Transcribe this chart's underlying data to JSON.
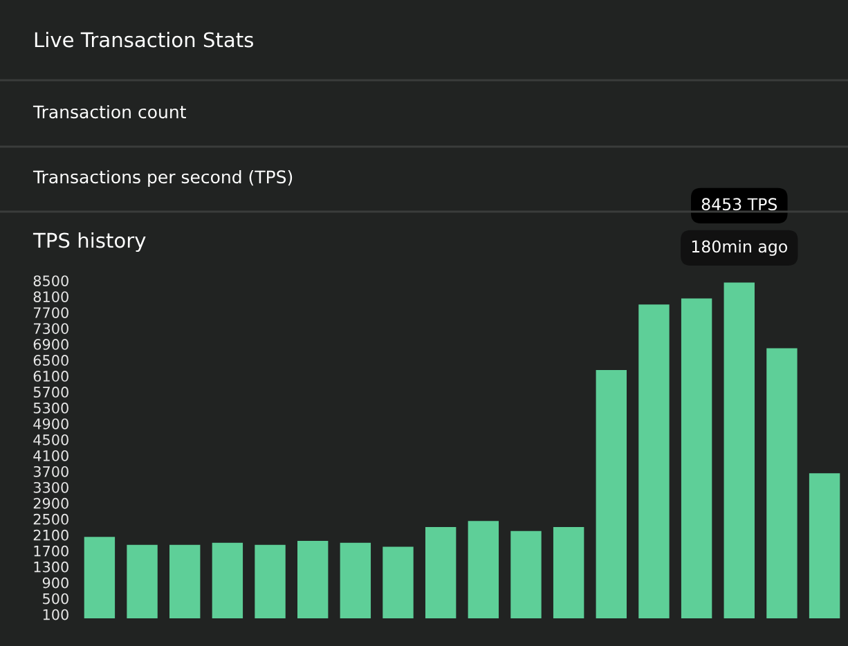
{
  "chart_data": {
    "type": "bar",
    "title": "Live Transaction Stats",
    "subtitle": "TPS history",
    "annotations": [
      "Transaction count",
      "Transactions per second (TPS)",
      "8453 TPS",
      "180min ago"
    ],
    "categories": [
      null,
      null,
      null,
      null,
      null,
      null,
      null,
      null,
      null,
      null,
      null,
      null,
      null,
      null,
      null,
      null,
      null,
      null
    ],
    "values": [
      2050,
      1850,
      1850,
      1900,
      1850,
      1950,
      1900,
      1800,
      2300,
      2450,
      2200,
      2300,
      6250,
      7900,
      8050,
      8453,
      6800,
      3650
    ],
    "color": "#5ecf98",
    "ylim": [
      0,
      8600
    ],
    "yticks": [
      100,
      500,
      900,
      1300,
      1700,
      2100,
      2500,
      2900,
      3300,
      3700,
      4100,
      4500,
      4900,
      5300,
      5700,
      6100,
      6500,
      6900,
      7300,
      7700,
      8100,
      8500
    ],
    "grid": false,
    "legend": false
  }
}
